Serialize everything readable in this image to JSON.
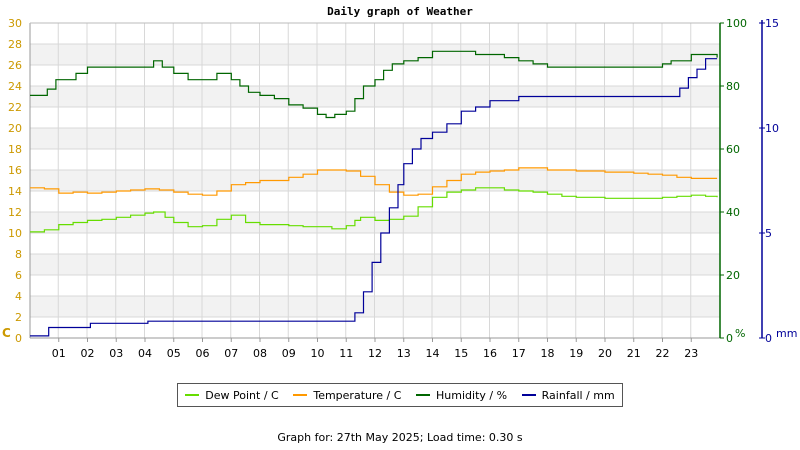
{
  "chart_data": {
    "type": "line",
    "title": "Daily graph of Weather",
    "x_ticks": [
      "01",
      "02",
      "03",
      "04",
      "05",
      "06",
      "07",
      "08",
      "09",
      "10",
      "11",
      "12",
      "13",
      "14",
      "15",
      "16",
      "17",
      "18",
      "19",
      "20",
      "21",
      "22",
      "23"
    ],
    "xlim": [
      0,
      24
    ],
    "axes": {
      "left": {
        "label": "C",
        "ylim": [
          0,
          30
        ],
        "ticks": [
          0,
          2,
          4,
          6,
          8,
          10,
          12,
          14,
          16,
          18,
          20,
          22,
          24,
          26,
          28,
          30
        ],
        "color": "#cc9900"
      },
      "right1": {
        "label": "%",
        "ylim": [
          0,
          100
        ],
        "ticks": [
          0,
          20,
          40,
          60,
          80,
          100
        ],
        "color": "#006600"
      },
      "right2": {
        "label": "mm",
        "ylim": [
          0,
          15
        ],
        "ticks": [
          0,
          5,
          10,
          15
        ],
        "color": "#000099"
      }
    },
    "grid": true,
    "legend_position": "bottom",
    "series": [
      {
        "name": "Dew Point / C",
        "axis": "left",
        "color": "#66dd00",
        "x": [
          0,
          0.5,
          1,
          1.5,
          2,
          2.5,
          3,
          3.5,
          4,
          4.3,
          4.7,
          5,
          5.5,
          6,
          6.5,
          7,
          7.5,
          8,
          8.5,
          9,
          9.5,
          10,
          10.5,
          11,
          11.3,
          11.5,
          12,
          12.5,
          13,
          13.5,
          14,
          14.5,
          15,
          15.5,
          16,
          16.5,
          17,
          17.5,
          18,
          18.5,
          19,
          19.5,
          20,
          20.5,
          21,
          21.5,
          22,
          22.5,
          23,
          23.5,
          23.9
        ],
        "values": [
          10.1,
          10.3,
          10.8,
          11,
          11.2,
          11.3,
          11.5,
          11.7,
          11.9,
          12,
          11.5,
          11,
          10.6,
          10.7,
          11.3,
          11.7,
          11,
          10.8,
          10.8,
          10.7,
          10.6,
          10.6,
          10.4,
          10.7,
          11.2,
          11.5,
          11.2,
          11.3,
          11.6,
          12.5,
          13.4,
          13.9,
          14.1,
          14.3,
          14.3,
          14.1,
          14,
          13.9,
          13.7,
          13.5,
          13.4,
          13.4,
          13.3,
          13.3,
          13.3,
          13.3,
          13.4,
          13.5,
          13.6,
          13.5,
          13.4
        ]
      },
      {
        "name": "Temperature / C",
        "axis": "left",
        "color": "#ff9900",
        "x": [
          0,
          0.5,
          1,
          1.5,
          2,
          2.5,
          3,
          3.5,
          4,
          4.5,
          5,
          5.5,
          6,
          6.5,
          7,
          7.5,
          8,
          8.5,
          9,
          9.5,
          10,
          10.5,
          11,
          11.5,
          12,
          12.5,
          13,
          13.5,
          14,
          14.5,
          15,
          15.5,
          16,
          16.5,
          17,
          17.5,
          18,
          18.5,
          19,
          19.5,
          20,
          20.5,
          21,
          21.5,
          22,
          22.5,
          23,
          23.5,
          23.9
        ],
        "values": [
          14.3,
          14.2,
          13.8,
          13.9,
          13.8,
          13.9,
          14,
          14.1,
          14.2,
          14.1,
          13.9,
          13.7,
          13.6,
          14,
          14.6,
          14.8,
          15,
          15,
          15.3,
          15.6,
          16,
          16,
          15.9,
          15.4,
          14.6,
          13.9,
          13.6,
          13.7,
          14.4,
          15,
          15.6,
          15.8,
          15.9,
          16,
          16.2,
          16.2,
          16,
          16,
          15.9,
          15.9,
          15.8,
          15.8,
          15.7,
          15.6,
          15.5,
          15.3,
          15.2,
          15.2,
          15.2
        ]
      },
      {
        "name": "Humidity / %",
        "axis": "right1",
        "color": "#006600",
        "x": [
          0,
          0.3,
          0.6,
          0.9,
          1.3,
          1.6,
          2,
          2.4,
          3,
          3.5,
          4,
          4.3,
          4.6,
          5,
          5.5,
          6,
          6.5,
          7,
          7.3,
          7.6,
          8,
          8.5,
          9,
          9.5,
          10,
          10.3,
          10.6,
          11,
          11.3,
          11.6,
          12,
          12.3,
          12.6,
          13,
          13.5,
          14,
          14.5,
          15,
          15.5,
          16,
          16.5,
          17,
          17.5,
          18,
          18.5,
          19,
          20,
          21,
          21.5,
          22,
          22.3,
          22.6,
          23,
          23.5,
          23.9
        ],
        "values": [
          77,
          77,
          79,
          82,
          82,
          84,
          86,
          86,
          86,
          86,
          86,
          88,
          86,
          84,
          82,
          82,
          84,
          82,
          80,
          78,
          77,
          76,
          74,
          73,
          71,
          70,
          71,
          72,
          76,
          80,
          82,
          85,
          87,
          88,
          89,
          91,
          91,
          91,
          90,
          90,
          89,
          88,
          87,
          86,
          86,
          86,
          86,
          86,
          86,
          87,
          88,
          88,
          90,
          90,
          89
        ]
      },
      {
        "name": "Rainfall / mm",
        "axis": "right2",
        "color": "#000099",
        "x": [
          0,
          0.6,
          0.65,
          1.3,
          1.35,
          2,
          2.1,
          3,
          3.5,
          4,
          4.1,
          5,
          6,
          7,
          8,
          9,
          10,
          11,
          11.3,
          11.6,
          11.9,
          12.2,
          12.5,
          12.8,
          13,
          13.3,
          13.6,
          14,
          14.5,
          15,
          15.5,
          16,
          17,
          18,
          19,
          20,
          21,
          22,
          22.3,
          22.6,
          22.9,
          23.2,
          23.5,
          23.9
        ],
        "values": [
          0.1,
          0.1,
          0.5,
          0.5,
          0.5,
          0.5,
          0.7,
          0.7,
          0.7,
          0.7,
          0.8,
          0.8,
          0.8,
          0.8,
          0.8,
          0.8,
          0.8,
          0.8,
          1.2,
          2.2,
          3.6,
          5.0,
          6.2,
          7.3,
          8.3,
          9.0,
          9.5,
          9.8,
          10.2,
          10.8,
          11.0,
          11.3,
          11.5,
          11.5,
          11.5,
          11.5,
          11.5,
          11.5,
          11.5,
          11.9,
          12.4,
          12.8,
          13.3,
          13.3
        ]
      }
    ]
  },
  "footer": "Graph for: 27th May 2025; Load time: 0.30 s"
}
